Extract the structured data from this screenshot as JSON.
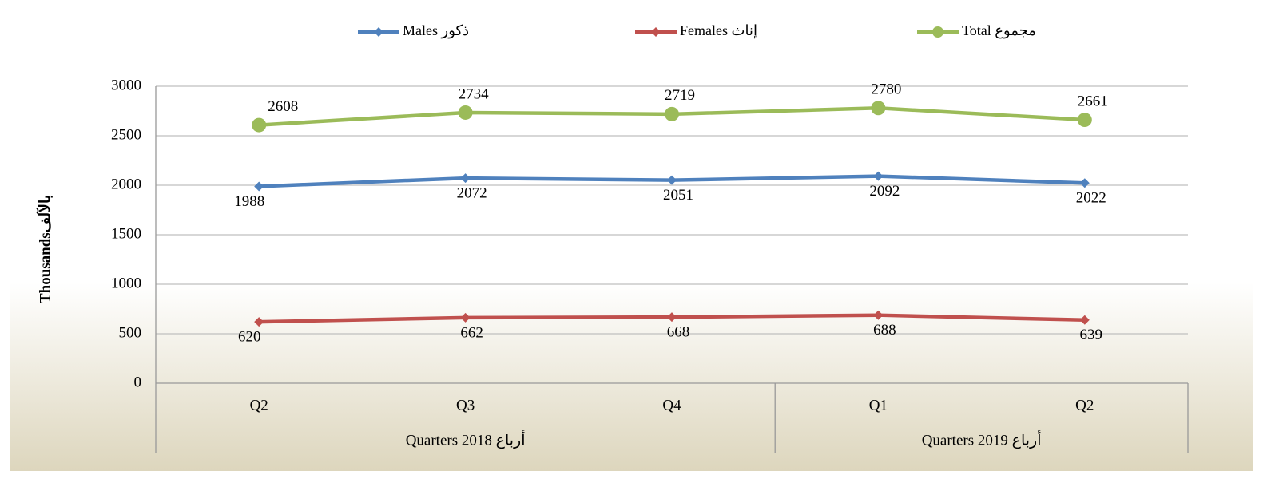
{
  "chart_data": {
    "type": "line",
    "y_label": "Thousandsبالآلف",
    "categories": [
      "Q2",
      "Q3",
      "Q4",
      "Q1",
      "Q2"
    ],
    "groups": [
      {
        "label": "Quarters  2018  أرباع",
        "span": 3
      },
      {
        "label": "Quarters  2019  أرباع",
        "span": 2
      }
    ],
    "series": [
      {
        "name": "Males  ذكور",
        "color": "#4f81bd",
        "marker": "diamond",
        "label_position": "below",
        "values": [
          1988,
          2072,
          2051,
          2092,
          2022
        ]
      },
      {
        "name": "Females  إناث",
        "color": "#c0504d",
        "marker": "diamond",
        "label_position": "below",
        "values": [
          620,
          662,
          668,
          688,
          639
        ]
      },
      {
        "name": "Total  مجموع",
        "color": "#9bbb59",
        "marker": "circle",
        "label_position": "above",
        "values": [
          2608,
          2734,
          2719,
          2780,
          2661
        ]
      }
    ],
    "ylim": [
      0,
      3000
    ],
    "yticks": [
      0,
      500,
      1000,
      1500,
      2000,
      2500,
      3000
    ],
    "grid": true,
    "legend": "top"
  }
}
